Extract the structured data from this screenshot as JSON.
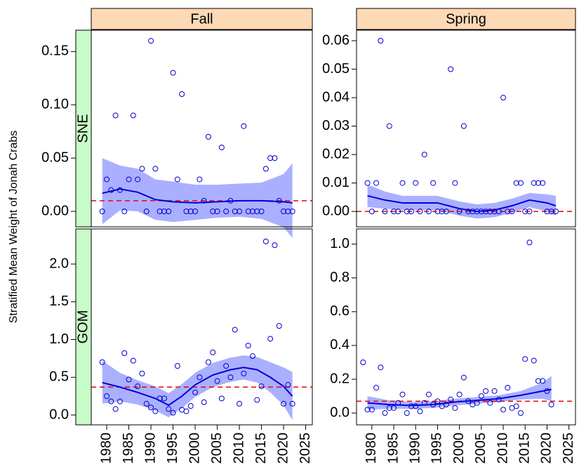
{
  "y_label": "Stratified Mean Weight of Jonah Crabs",
  "columns": [
    "Fall",
    "Spring"
  ],
  "rows": [
    "SNE",
    "GOM"
  ],
  "chart_data": [
    {
      "type": "scatter",
      "point_color": "#0000cc",
      "line_color": "#0000dd",
      "band_color": "#aab0ff",
      "reference_color": "#ee0000",
      "xlim": [
        1976.5,
        2026.5
      ],
      "ylim": [
        -0.0145,
        0.17
      ],
      "yticks": [
        {
          "value": 0,
          "label": "0.00"
        },
        0.05,
        {
          "value": 0.1,
          "label": "0.10"
        },
        0.15
      ],
      "x": [
        1979,
        1980,
        1981,
        1982,
        1983,
        1984,
        1985,
        1986,
        1987,
        1988,
        1989,
        1990,
        1991,
        1992,
        1993,
        1994,
        1995,
        1996,
        1997,
        1998,
        1999,
        2000,
        2001,
        2002,
        2003,
        2004,
        2005,
        2006,
        2007,
        2008,
        2009,
        2010,
        2011,
        2012,
        2013,
        2014,
        2015,
        2016,
        2017,
        2018,
        2019,
        2020,
        2021,
        2022
      ],
      "values": [
        0,
        0.03,
        0.02,
        0.09,
        0.02,
        0,
        0.03,
        0.09,
        0.03,
        0.04,
        0,
        0.16,
        0.04,
        0,
        0,
        0,
        0.13,
        0.03,
        0.11,
        0,
        0,
        0,
        0.03,
        0.01,
        0.07,
        0,
        0,
        0.06,
        0,
        0.01,
        0,
        0,
        0.08,
        0,
        0,
        0,
        0,
        0.04,
        0.05,
        0.05,
        0.01,
        0,
        0,
        0
      ],
      "smooth": {
        "x": [
          1979,
          1983,
          1987,
          1991,
          1995,
          2000,
          2005,
          2010,
          2015,
          2020,
          2022
        ],
        "values": [
          0.017,
          0.021,
          0.018,
          0.011,
          0.009,
          0.008,
          0.009,
          0.01,
          0.01,
          0.009,
          0.008
        ]
      },
      "band": {
        "x": [
          1979,
          1983,
          1987,
          1991,
          1995,
          2000,
          2005,
          2010,
          2015,
          2020,
          2022
        ],
        "lower": [
          -0.012,
          0.001,
          0.0,
          -0.008,
          -0.01,
          -0.008,
          -0.006,
          -0.005,
          -0.007,
          -0.015,
          -0.025
        ],
        "upper": [
          0.05,
          0.043,
          0.04,
          0.03,
          0.028,
          0.025,
          0.025,
          0.026,
          0.027,
          0.035,
          0.045
        ]
      },
      "reference": 0.01
    },
    {
      "type": "scatter",
      "point_color": "#0000cc",
      "line_color": "#0000dd",
      "band_color": "#aab0ff",
      "reference_color": "#ee0000",
      "xlim": [
        1976.5,
        2026.5
      ],
      "ylim": [
        -0.0054,
        0.0637
      ],
      "yticks": [
        {
          "value": 0,
          "label": "0.00"
        },
        {
          "value": 0.01,
          "label": "0.01"
        },
        {
          "value": 0.02,
          "label": "0.02"
        },
        {
          "value": 0.03,
          "label": "0.03"
        },
        {
          "value": 0.04,
          "label": "0.04"
        },
        {
          "value": 0.05,
          "label": "0.05"
        },
        {
          "value": 0.06,
          "label": "0.06"
        }
      ],
      "x": [
        1979,
        1980,
        1981,
        1982,
        1983,
        1984,
        1985,
        1986,
        1987,
        1988,
        1989,
        1990,
        1991,
        1992,
        1993,
        1994,
        1995,
        1996,
        1997,
        1998,
        1999,
        2000,
        2001,
        2002,
        2003,
        2004,
        2005,
        2006,
        2007,
        2008,
        2009,
        2010,
        2011,
        2012,
        2013,
        2014,
        2015,
        2016,
        2017,
        2018,
        2019,
        2020,
        2021,
        2022
      ],
      "values": [
        0.01,
        0,
        0.01,
        0.06,
        0,
        0.03,
        0,
        0,
        0.01,
        0,
        0,
        0.01,
        0,
        0.02,
        0,
        0.01,
        0,
        0,
        0,
        0.05,
        0.01,
        0,
        0.03,
        0,
        0,
        0,
        0,
        0,
        0,
        0,
        0,
        0.04,
        0,
        0,
        0.01,
        0.01,
        0,
        0,
        0.01,
        0.01,
        0.01,
        0,
        0,
        0
      ],
      "smooth": {
        "x": [
          1979,
          1983,
          1987,
          1991,
          1995,
          2000,
          2004,
          2008,
          2012,
          2016,
          2020,
          2022
        ],
        "values": [
          0.0055,
          0.004,
          0.003,
          0.003,
          0.003,
          0.001,
          0,
          0.0005,
          0.002,
          0.004,
          0.003,
          0.002
        ]
      },
      "band": {
        "x": [
          1979,
          1983,
          1987,
          1991,
          1995,
          2000,
          2004,
          2008,
          2012,
          2016,
          2020,
          2022
        ],
        "lower": [
          0.0015,
          0.001,
          0.0005,
          0.0005,
          0.0005,
          -0.0015,
          -0.0025,
          -0.002,
          -0.0005,
          0.0015,
          0.0,
          -0.0015
        ],
        "upper": [
          0.0095,
          0.007,
          0.0055,
          0.0055,
          0.0055,
          0.0035,
          0.0025,
          0.003,
          0.0045,
          0.0065,
          0.006,
          0.0055
        ]
      },
      "reference": 0
    },
    {
      "type": "scatter",
      "point_color": "#0000cc",
      "line_color": "#0000dd",
      "band_color": "#aab0ff",
      "reference_color": "#ee0000",
      "xlim": [
        1976.5,
        2026.5
      ],
      "ylim": [
        -0.13,
        2.465
      ],
      "xticks": [
        1980,
        1985,
        1990,
        1995,
        2000,
        2005,
        2010,
        2015,
        2020,
        2025
      ],
      "yticks": [
        {
          "value": 0,
          "label": "0.0"
        },
        0.5,
        {
          "value": 1,
          "label": "1.0"
        },
        1.5,
        {
          "value": 2,
          "label": "2.0"
        }
      ],
      "x": [
        1979,
        1980,
        1981,
        1982,
        1983,
        1984,
        1985,
        1986,
        1987,
        1988,
        1989,
        1990,
        1991,
        1992,
        1993,
        1994,
        1995,
        1996,
        1997,
        1998,
        1999,
        2000,
        2001,
        2002,
        2003,
        2004,
        2005,
        2006,
        2007,
        2008,
        2009,
        2010,
        2011,
        2012,
        2013,
        2014,
        2015,
        2016,
        2017,
        2018,
        2019,
        2020,
        2021,
        2022
      ],
      "values": [
        0.7,
        0.25,
        0.18,
        0.08,
        0.18,
        0.82,
        0.47,
        0.72,
        0.38,
        0.55,
        0.15,
        0.1,
        0.05,
        0.22,
        0.22,
        0.08,
        0.03,
        0.65,
        0.07,
        0.05,
        0.12,
        0.3,
        0.5,
        0.17,
        0.7,
        0.83,
        0.45,
        0.22,
        0.65,
        0.5,
        1.13,
        0.15,
        0.55,
        0.92,
        0.78,
        0.2,
        0.38,
        2.3,
        1.01,
        2.25,
        1.18,
        0.15,
        0.4,
        0.15
      ],
      "smooth": {
        "x": [
          1979,
          1983,
          1987,
          1991,
          1994,
          1997,
          2000,
          2004,
          2008,
          2011,
          2014,
          2017,
          2020,
          2022
        ],
        "values": [
          0.43,
          0.37,
          0.3,
          0.22,
          0.13,
          0.25,
          0.4,
          0.53,
          0.6,
          0.63,
          0.6,
          0.5,
          0.38,
          0.25
        ]
      },
      "band": {
        "x": [
          1979,
          1983,
          1987,
          1991,
          1994,
          1997,
          2000,
          2004,
          2008,
          2011,
          2014,
          2017,
          2020,
          2022
        ],
        "lower": [
          0.15,
          0.18,
          0.14,
          0.06,
          -0.03,
          0.09,
          0.24,
          0.37,
          0.44,
          0.47,
          0.43,
          0.3,
          0.13,
          -0.07
        ],
        "upper": [
          0.72,
          0.56,
          0.46,
          0.38,
          0.29,
          0.41,
          0.56,
          0.69,
          0.76,
          0.79,
          0.77,
          0.7,
          0.63,
          0.57
        ]
      },
      "reference": 0.37
    },
    {
      "type": "scatter",
      "point_color": "#0000cc",
      "line_color": "#0000dd",
      "band_color": "#aab0ff",
      "reference_color": "#ee0000",
      "xlim": [
        1976.5,
        2026.5
      ],
      "ylim": [
        -0.07,
        1.09
      ],
      "xticks": [
        1980,
        1985,
        1990,
        1995,
        2000,
        2005,
        2010,
        2015,
        2020,
        2025
      ],
      "yticks": [
        {
          "value": 0,
          "label": "0.0"
        },
        0.2,
        0.4,
        0.6,
        0.8,
        {
          "value": 1,
          "label": "1.0"
        }
      ],
      "x": [
        1978,
        1979,
        1980,
        1981,
        1982,
        1983,
        1984,
        1985,
        1986,
        1987,
        1988,
        1989,
        1990,
        1991,
        1992,
        1993,
        1994,
        1995,
        1996,
        1997,
        1998,
        1999,
        2000,
        2001,
        2002,
        2003,
        2004,
        2005,
        2006,
        2007,
        2008,
        2009,
        2010,
        2011,
        2012,
        2013,
        2014,
        2015,
        2016,
        2017,
        2018,
        2019,
        2020,
        2021
      ],
      "values": [
        0.3,
        0.02,
        0.02,
        0.15,
        0.27,
        0,
        0.03,
        0.03,
        0.06,
        0.11,
        0,
        0.04,
        0.04,
        0.01,
        0.06,
        0.11,
        0.05,
        0.07,
        0.04,
        0.05,
        0.08,
        0.03,
        0.11,
        0.21,
        0.07,
        0.05,
        0.06,
        0.1,
        0.13,
        0.06,
        0.13,
        0.08,
        0.02,
        0.15,
        0.03,
        0.04,
        0,
        0.32,
        1.01,
        0.31,
        0.19,
        0.19,
        0.13,
        0.05
      ],
      "smooth": {
        "x": [
          1979,
          1984,
          1989,
          1994,
          1999,
          2004,
          2009,
          2014,
          2019,
          2021
        ],
        "values": [
          0.06,
          0.05,
          0.045,
          0.05,
          0.065,
          0.075,
          0.085,
          0.105,
          0.13,
          0.14
        ]
      },
      "band": {
        "x": [
          1979,
          1984,
          1989,
          1994,
          1999,
          2004,
          2009,
          2014,
          2019,
          2021
        ],
        "lower": [
          0.02,
          0.025,
          0.025,
          0.03,
          0.045,
          0.055,
          0.065,
          0.08,
          0.085,
          0.07
        ],
        "upper": [
          0.1,
          0.075,
          0.065,
          0.07,
          0.085,
          0.095,
          0.105,
          0.13,
          0.18,
          0.22
        ]
      },
      "reference": 0.07
    }
  ]
}
